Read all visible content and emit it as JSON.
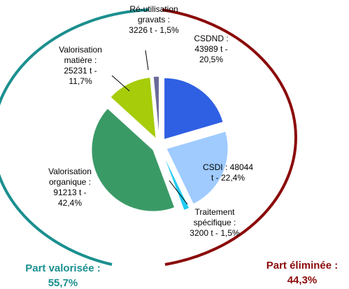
{
  "chart_data": {
    "type": "pie",
    "categories": [
      "CSDND",
      "CSDI",
      "Traitement spécifique",
      "Valorisation organique",
      "Valorisation matière",
      "Ré-utilisation gravats"
    ],
    "values": [
      43989,
      48044,
      3200,
      91213,
      25231,
      3226
    ],
    "value_labels": [
      [
        "CSDND :",
        "43989 t -",
        "20,5%"
      ],
      [
        "CSDI : 48044",
        "t - 22,4%"
      ],
      [
        "Traitement",
        "spécifique :",
        "3200 t - 1,5%"
      ],
      [
        "Valorisation",
        "organique :",
        "91213 t -",
        "42,4%"
      ],
      [
        "Valorisation",
        "matière :",
        "25231 t -",
        "11,7%"
      ],
      [
        "Ré-utilisation",
        "gravats :",
        "3226 t - 1,5%"
      ]
    ],
    "colors": [
      "#2f5fe3",
      "#9fcbff",
      "#22ccf0",
      "#3a9a66",
      "#a6cc0a",
      "#6a6a9a"
    ],
    "annotations": [
      {
        "lines": [
          "Part valorisée :",
          "55,7%"
        ],
        "color": "#1b8f8f"
      },
      {
        "lines": [
          "Part éliminée :",
          "44,3%"
        ],
        "color": "#8b0a0a"
      }
    ]
  }
}
